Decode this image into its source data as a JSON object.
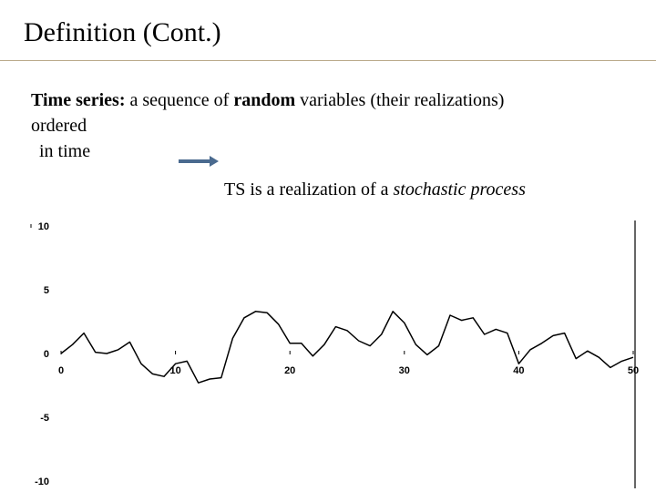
{
  "slide": {
    "title": "Definition (Cont.)",
    "line1": {
      "term": "Time series:",
      "pre": " a sequence of ",
      "emph": "random",
      "post": " variables (their realizations)"
    },
    "line2": "ordered",
    "line3": "in time",
    "line4": {
      "pre": "TS is a realization of a ",
      "emph": "stochastic process"
    },
    "arrow_color": "#4a6a8f"
  },
  "chart_data": {
    "type": "line",
    "x": [
      0,
      1,
      2,
      3,
      4,
      5,
      6,
      7,
      8,
      9,
      10,
      11,
      12,
      13,
      14,
      15,
      16,
      17,
      18,
      19,
      20,
      21,
      22,
      23,
      24,
      25,
      26,
      27,
      28,
      29,
      30,
      31,
      32,
      33,
      34,
      35,
      36,
      37,
      38,
      39,
      40,
      41,
      42,
      43,
      44,
      45,
      46,
      47,
      48,
      49,
      50
    ],
    "series": [
      {
        "values": [
          0,
          0.7,
          1.6,
          0.1,
          0,
          0.3,
          0.9,
          -0.8,
          -1.6,
          -1.8,
          -0.8,
          -0.6,
          -2.3,
          -2.0,
          -1.9,
          1.2,
          2.8,
          3.3,
          3.2,
          2.3,
          0.8,
          0.8,
          -0.2,
          0.7,
          2.1,
          1.8,
          1.0,
          0.6,
          1.5,
          3.3,
          2.4,
          0.7,
          -0.1,
          0.6,
          3.0,
          2.6,
          2.8,
          1.5,
          1.9,
          1.6,
          -0.8,
          0.3,
          0.8,
          1.4,
          1.6,
          -0.4,
          0.2,
          -0.3,
          -1.1,
          -0.6,
          -0.3
        ]
      }
    ],
    "color": "#000000",
    "xlim": [
      0,
      50
    ],
    "ylim": [
      -10,
      10
    ],
    "x_ticks": [
      "0",
      "10",
      "20",
      "30",
      "40",
      "50"
    ],
    "y_ticks": [
      "10",
      "5",
      "0",
      "-5",
      "-10"
    ],
    "grid": false
  }
}
